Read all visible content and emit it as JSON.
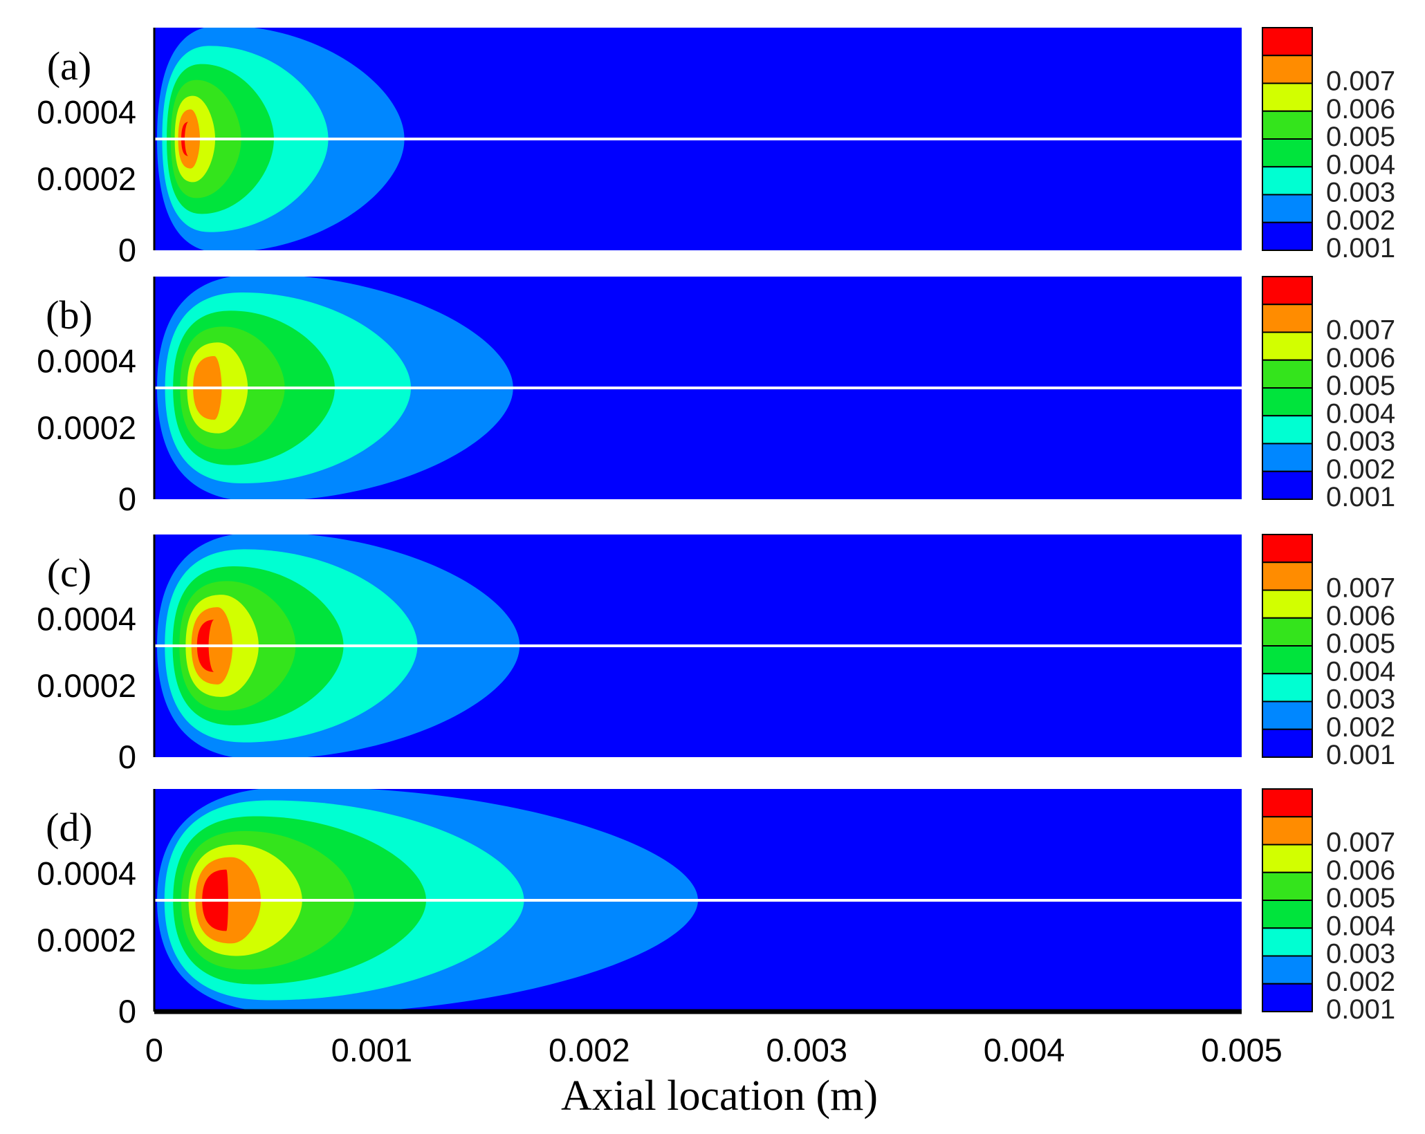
{
  "chart_data": {
    "type": "heatmap",
    "xlabel": "Axial location (m)",
    "x_ticks": [
      "0",
      "0.001",
      "0.002",
      "0.003",
      "0.004",
      "0.005"
    ],
    "xlim": [
      0,
      0.005
    ],
    "y_ticks": [
      "0",
      "0.0002",
      "0.0004"
    ],
    "levels": [
      0.001,
      0.002,
      0.003,
      0.004,
      0.005,
      0.006,
      0.007
    ],
    "level_labels": [
      "0.001",
      "0.002",
      "0.003",
      "0.004",
      "0.005",
      "0.006",
      "0.007"
    ],
    "colors": [
      "#0000ff",
      "#0087ff",
      "#00ffd2",
      "#00e43c",
      "#34e41c",
      "#d2ff00",
      "#ff8c00",
      "#ff0000"
    ],
    "panels": [
      {
        "label": "(a)",
        "contours": [
          {
            "level": 0.001,
            "extent_x": 0.00115,
            "extent_r": 1.0
          },
          {
            "level": 0.002,
            "extent_x": 0.0008,
            "extent_r": 0.82
          },
          {
            "level": 0.003,
            "extent_x": 0.00055,
            "extent_r": 0.66
          },
          {
            "level": 0.004,
            "extent_x": 0.0004,
            "extent_r": 0.52
          },
          {
            "level": 0.005,
            "extent_x": 0.00028,
            "extent_r": 0.38
          },
          {
            "level": 0.006,
            "extent_x": 0.00021,
            "extent_r": 0.26
          },
          {
            "level": 0.007,
            "extent_x": 0.00014,
            "extent_r": 0.15
          }
        ],
        "peak_x": 0.00016
      },
      {
        "label": "(b)",
        "contours": [
          {
            "level": 0.001,
            "extent_x": 0.00165,
            "extent_r": 1.0
          },
          {
            "level": 0.002,
            "extent_x": 0.00118,
            "extent_r": 0.84
          },
          {
            "level": 0.003,
            "extent_x": 0.00083,
            "extent_r": 0.68
          },
          {
            "level": 0.004,
            "extent_x": 0.0006,
            "extent_r": 0.54
          },
          {
            "level": 0.005,
            "extent_x": 0.00043,
            "extent_r": 0.4
          },
          {
            "level": 0.006,
            "extent_x": 0.00031,
            "extent_r": 0.28
          }
        ],
        "peak_x": 0.00027
      },
      {
        "label": "(c)",
        "contours": [
          {
            "level": 0.001,
            "extent_x": 0.00168,
            "extent_r": 1.0
          },
          {
            "level": 0.002,
            "extent_x": 0.00121,
            "extent_r": 0.85
          },
          {
            "level": 0.003,
            "extent_x": 0.00087,
            "extent_r": 0.7
          },
          {
            "level": 0.004,
            "extent_x": 0.00065,
            "extent_r": 0.57
          },
          {
            "level": 0.005,
            "extent_x": 0.00048,
            "extent_r": 0.45
          },
          {
            "level": 0.006,
            "extent_x": 0.00036,
            "extent_r": 0.34
          },
          {
            "level": 0.007,
            "extent_x": 0.00025,
            "extent_r": 0.23
          }
        ],
        "peak_x": 0.00028
      },
      {
        "label": "(d)",
        "contours": [
          {
            "level": 0.001,
            "extent_x": 0.0025,
            "extent_r": 1.0
          },
          {
            "level": 0.002,
            "extent_x": 0.0017,
            "extent_r": 0.88
          },
          {
            "level": 0.003,
            "extent_x": 0.00125,
            "extent_r": 0.74
          },
          {
            "level": 0.004,
            "extent_x": 0.00092,
            "extent_r": 0.61
          },
          {
            "level": 0.005,
            "extent_x": 0.00068,
            "extent_r": 0.49
          },
          {
            "level": 0.006,
            "extent_x": 0.00049,
            "extent_r": 0.38
          },
          {
            "level": 0.007,
            "extent_x": 0.00034,
            "extent_r": 0.27
          }
        ],
        "peak_x": 0.00033
      }
    ]
  }
}
